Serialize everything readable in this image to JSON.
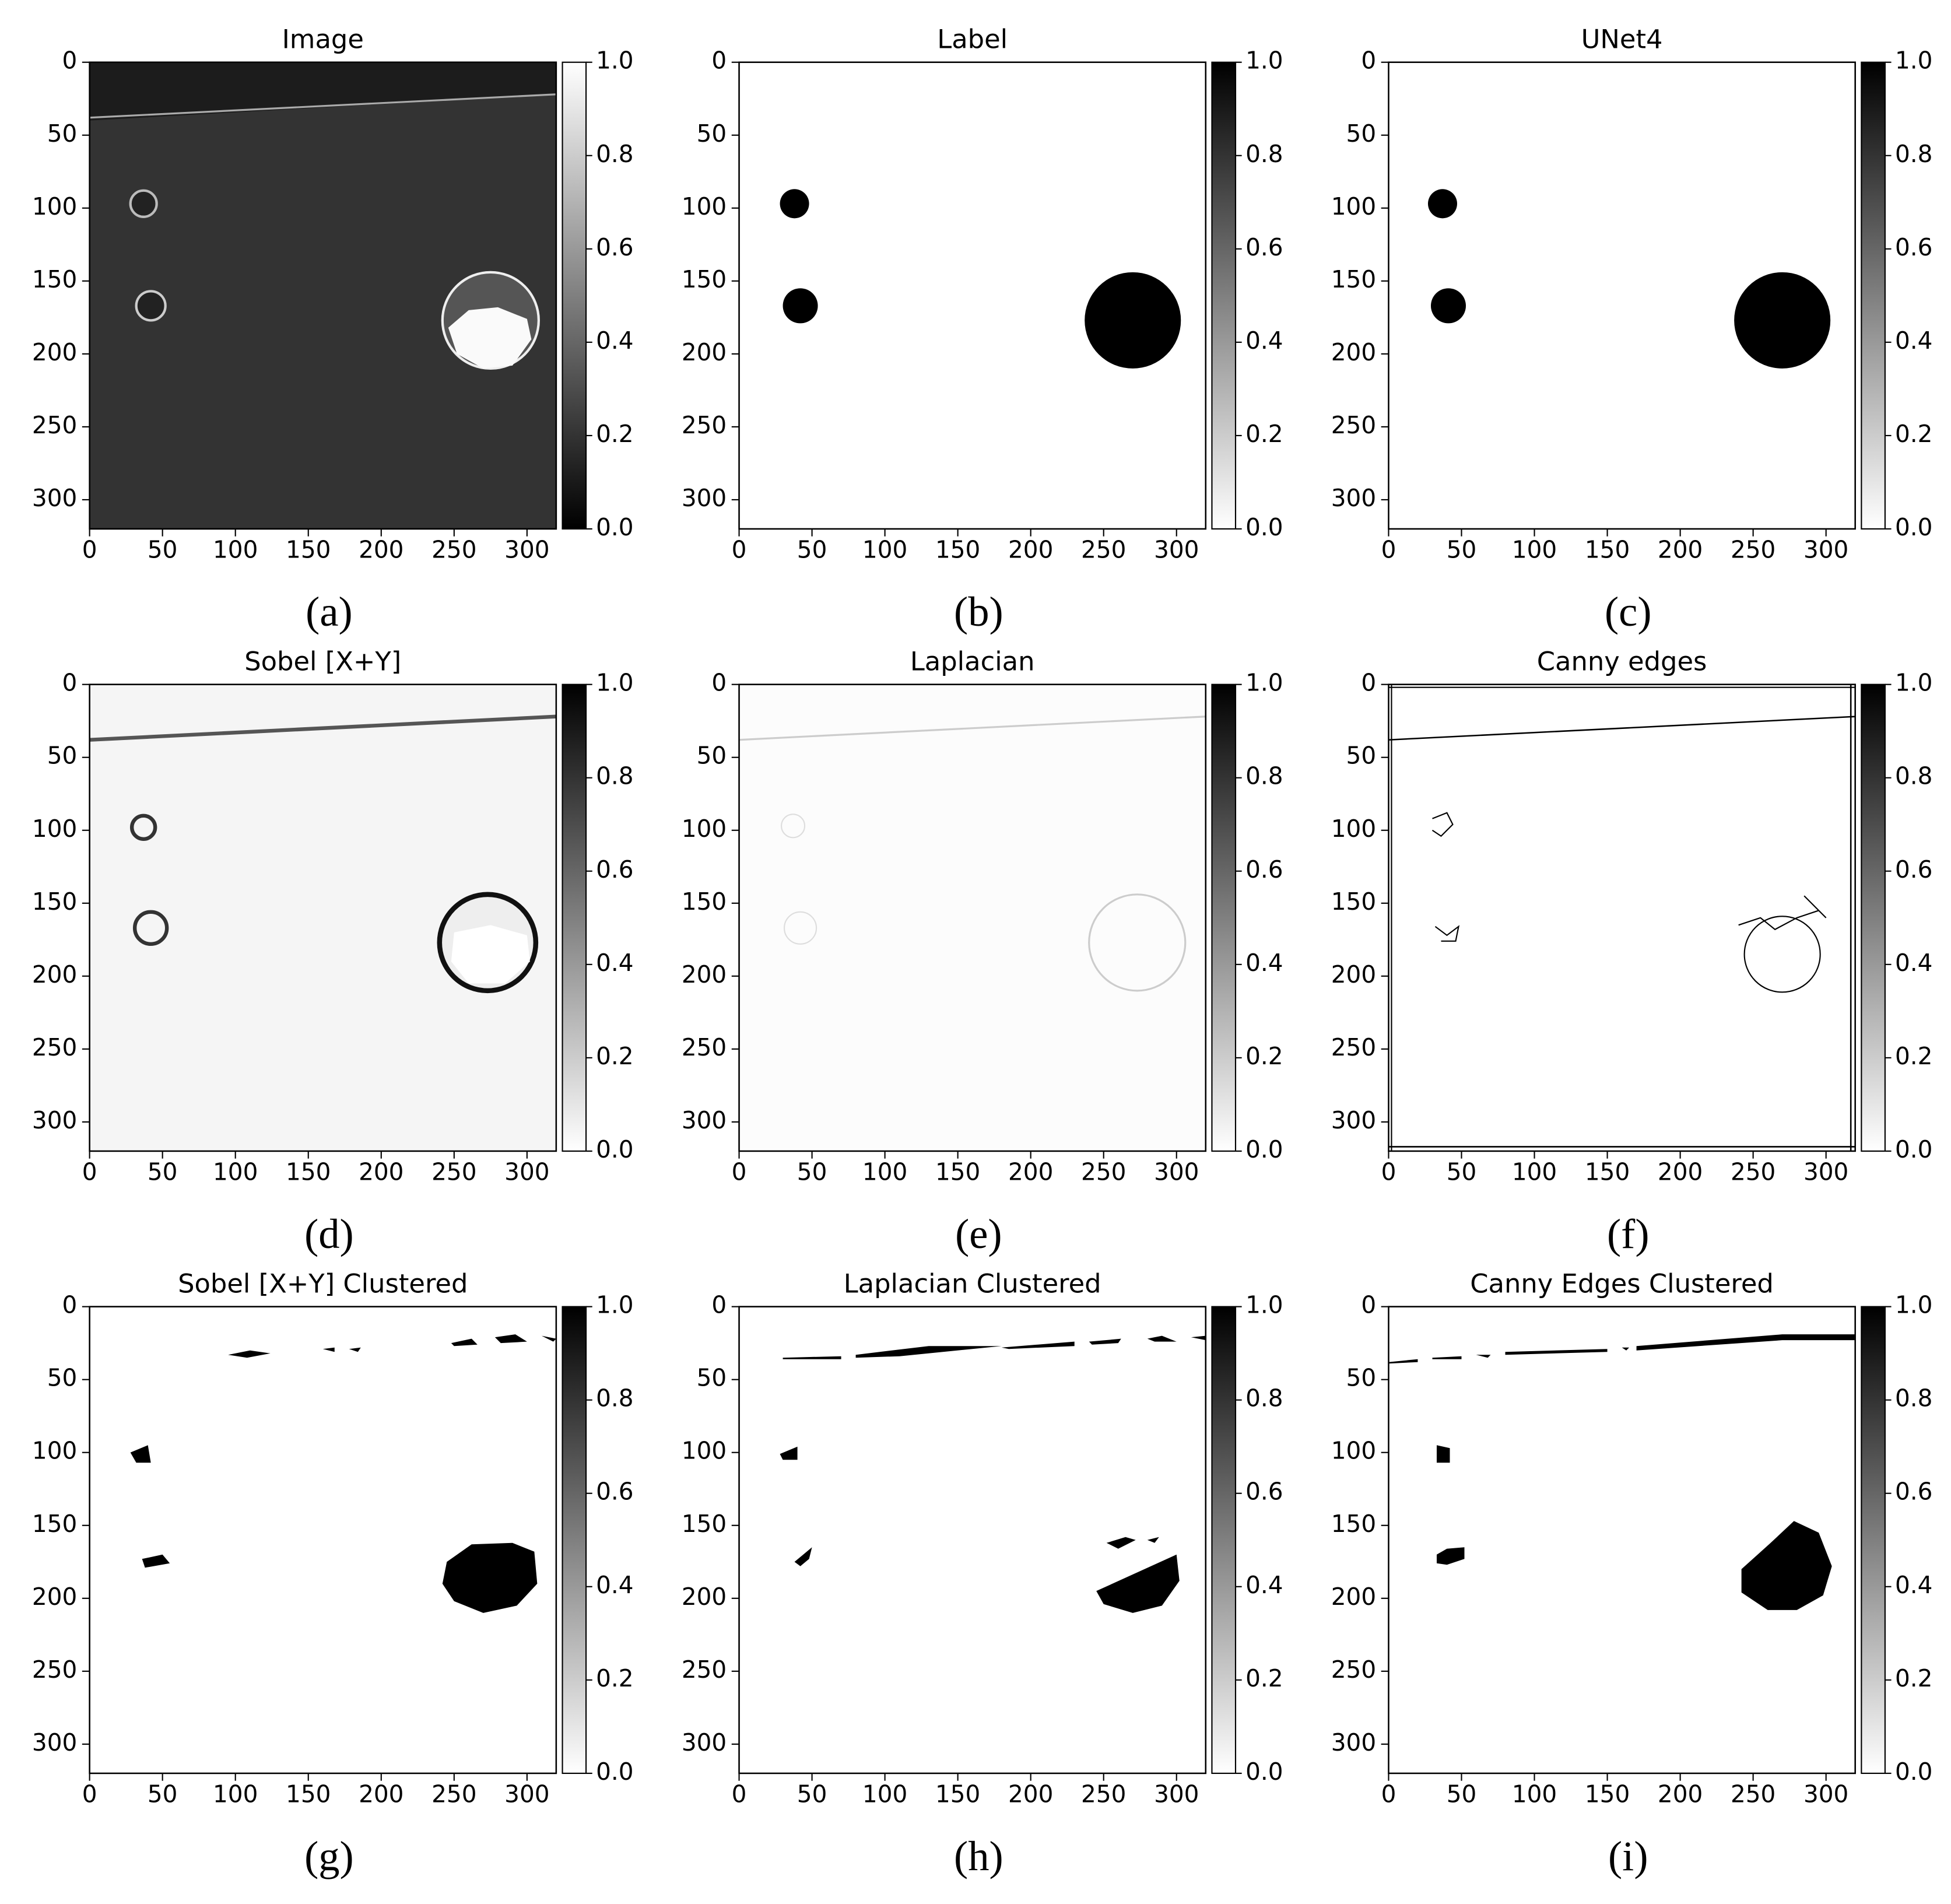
{
  "chart_data": [
    {
      "type": "image",
      "title": "Image",
      "panel_label": "(a)",
      "cmap": "gray",
      "xlim": [
        0,
        320
      ],
      "ylim": [
        320,
        0
      ],
      "xticks": [
        0,
        50,
        100,
        150,
        200,
        250,
        300
      ],
      "yticks": [
        0,
        50,
        100,
        150,
        200,
        250,
        300
      ],
      "clim": [
        0,
        1
      ],
      "cticks": [
        {
          "value": 0,
          "label": "0.0"
        },
        {
          "value": 0.2,
          "label": "0.2"
        },
        {
          "value": 0.4,
          "label": "0.4"
        },
        {
          "value": 0.6,
          "label": "0.6"
        },
        {
          "value": 0.8,
          "label": "0.8"
        },
        {
          "value": 1,
          "label": "1.0"
        }
      ]
    },
    {
      "type": "image",
      "title": "Label",
      "panel_label": "(b)",
      "cmap": "gray_r",
      "xlim": [
        0,
        320
      ],
      "ylim": [
        320,
        0
      ],
      "xticks": [
        0,
        50,
        100,
        150,
        200,
        250,
        300
      ],
      "yticks": [
        0,
        50,
        100,
        150,
        200,
        250,
        300
      ],
      "clim": [
        0,
        1
      ],
      "cticks": [
        {
          "value": 0,
          "label": "0.0"
        },
        {
          "value": 0.2,
          "label": "0.2"
        },
        {
          "value": 0.4,
          "label": "0.4"
        },
        {
          "value": 0.6,
          "label": "0.6"
        },
        {
          "value": 0.8,
          "label": "0.8"
        },
        {
          "value": 1,
          "label": "1.0"
        }
      ]
    },
    {
      "type": "image",
      "title": "UNet4",
      "panel_label": "(c)",
      "cmap": "gray_r",
      "xlim": [
        0,
        320
      ],
      "ylim": [
        320,
        0
      ],
      "xticks": [
        0,
        50,
        100,
        150,
        200,
        250,
        300
      ],
      "yticks": [
        0,
        50,
        100,
        150,
        200,
        250,
        300
      ],
      "clim": [
        0,
        1
      ],
      "cticks": [
        {
          "value": 0,
          "label": "0.0"
        },
        {
          "value": 0.2,
          "label": "0.2"
        },
        {
          "value": 0.4,
          "label": "0.4"
        },
        {
          "value": 0.6,
          "label": "0.6"
        },
        {
          "value": 0.8,
          "label": "0.8"
        },
        {
          "value": 1,
          "label": "1.0"
        }
      ]
    },
    {
      "type": "image",
      "title": "Sobel [X+Y]",
      "panel_label": "(d)",
      "cmap": "gray_r",
      "xlim": [
        0,
        320
      ],
      "ylim": [
        320,
        0
      ],
      "xticks": [
        0,
        50,
        100,
        150,
        200,
        250,
        300
      ],
      "yticks": [
        0,
        50,
        100,
        150,
        200,
        250,
        300
      ],
      "clim": [
        0,
        1
      ],
      "cticks": [
        {
          "value": 0,
          "label": "0.0"
        },
        {
          "value": 0.2,
          "label": "0.2"
        },
        {
          "value": 0.4,
          "label": "0.4"
        },
        {
          "value": 0.6,
          "label": "0.6"
        },
        {
          "value": 0.8,
          "label": "0.8"
        },
        {
          "value": 1,
          "label": "1.0"
        }
      ]
    },
    {
      "type": "image",
      "title": "Laplacian",
      "panel_label": "(e)",
      "cmap": "gray_r",
      "xlim": [
        0,
        320
      ],
      "ylim": [
        320,
        0
      ],
      "xticks": [
        0,
        50,
        100,
        150,
        200,
        250,
        300
      ],
      "yticks": [
        0,
        50,
        100,
        150,
        200,
        250,
        300
      ],
      "clim": [
        0,
        1
      ],
      "cticks": [
        {
          "value": 0,
          "label": "0.0"
        },
        {
          "value": 0.2,
          "label": "0.2"
        },
        {
          "value": 0.4,
          "label": "0.4"
        },
        {
          "value": 0.6,
          "label": "0.6"
        },
        {
          "value": 0.8,
          "label": "0.8"
        },
        {
          "value": 1,
          "label": "1.0"
        }
      ]
    },
    {
      "type": "image",
      "title": "Canny edges",
      "panel_label": "(f)",
      "cmap": "gray_r",
      "xlim": [
        0,
        320
      ],
      "ylim": [
        320,
        0
      ],
      "xticks": [
        0,
        50,
        100,
        150,
        200,
        250,
        300
      ],
      "yticks": [
        0,
        50,
        100,
        150,
        200,
        250,
        300
      ],
      "clim": [
        0,
        1
      ],
      "cticks": [
        {
          "value": 0,
          "label": "0.0"
        },
        {
          "value": 0.2,
          "label": "0.2"
        },
        {
          "value": 0.4,
          "label": "0.4"
        },
        {
          "value": 0.6,
          "label": "0.6"
        },
        {
          "value": 0.8,
          "label": "0.8"
        },
        {
          "value": 1,
          "label": "1.0"
        }
      ]
    },
    {
      "type": "image",
      "title": "Sobel [X+Y] Clustered",
      "panel_label": "(g)",
      "cmap": "gray_r",
      "xlim": [
        0,
        320
      ],
      "ylim": [
        320,
        0
      ],
      "xticks": [
        0,
        50,
        100,
        150,
        200,
        250,
        300
      ],
      "yticks": [
        0,
        50,
        100,
        150,
        200,
        250,
        300
      ],
      "clim": [
        0,
        1
      ],
      "cticks": [
        {
          "value": 0,
          "label": "0.0"
        },
        {
          "value": 0.2,
          "label": "0.2"
        },
        {
          "value": 0.4,
          "label": "0.4"
        },
        {
          "value": 0.6,
          "label": "0.6"
        },
        {
          "value": 0.8,
          "label": "0.8"
        },
        {
          "value": 1,
          "label": "1.0"
        }
      ]
    },
    {
      "type": "image",
      "title": "Laplacian Clustered",
      "panel_label": "(h)",
      "cmap": "gray_r",
      "xlim": [
        0,
        320
      ],
      "ylim": [
        320,
        0
      ],
      "xticks": [
        0,
        50,
        100,
        150,
        200,
        250,
        300
      ],
      "yticks": [
        0,
        50,
        100,
        150,
        200,
        250,
        300
      ],
      "clim": [
        0,
        1
      ],
      "cticks": [
        {
          "value": 0,
          "label": "0.0"
        },
        {
          "value": 0.2,
          "label": "0.2"
        },
        {
          "value": 0.4,
          "label": "0.4"
        },
        {
          "value": 0.6,
          "label": "0.6"
        },
        {
          "value": 0.8,
          "label": "0.8"
        },
        {
          "value": 1,
          "label": "1.0"
        }
      ]
    },
    {
      "type": "image",
      "title": "Canny Edges Clustered",
      "panel_label": "(i)",
      "cmap": "gray_r",
      "xlim": [
        0,
        320
      ],
      "ylim": [
        320,
        0
      ],
      "xticks": [
        0,
        50,
        100,
        150,
        200,
        250,
        300
      ],
      "yticks": [
        0,
        50,
        100,
        150,
        200,
        250,
        300
      ],
      "clim": [
        0,
        1
      ],
      "cticks": [
        {
          "value": 0,
          "label": "0.0"
        },
        {
          "value": 0.2,
          "label": "0.2"
        },
        {
          "value": 0.4,
          "label": "0.4"
        },
        {
          "value": 0.6,
          "label": "0.6"
        },
        {
          "value": 0.8,
          "label": "0.8"
        },
        {
          "value": 1,
          "label": "1.0"
        }
      ]
    }
  ]
}
